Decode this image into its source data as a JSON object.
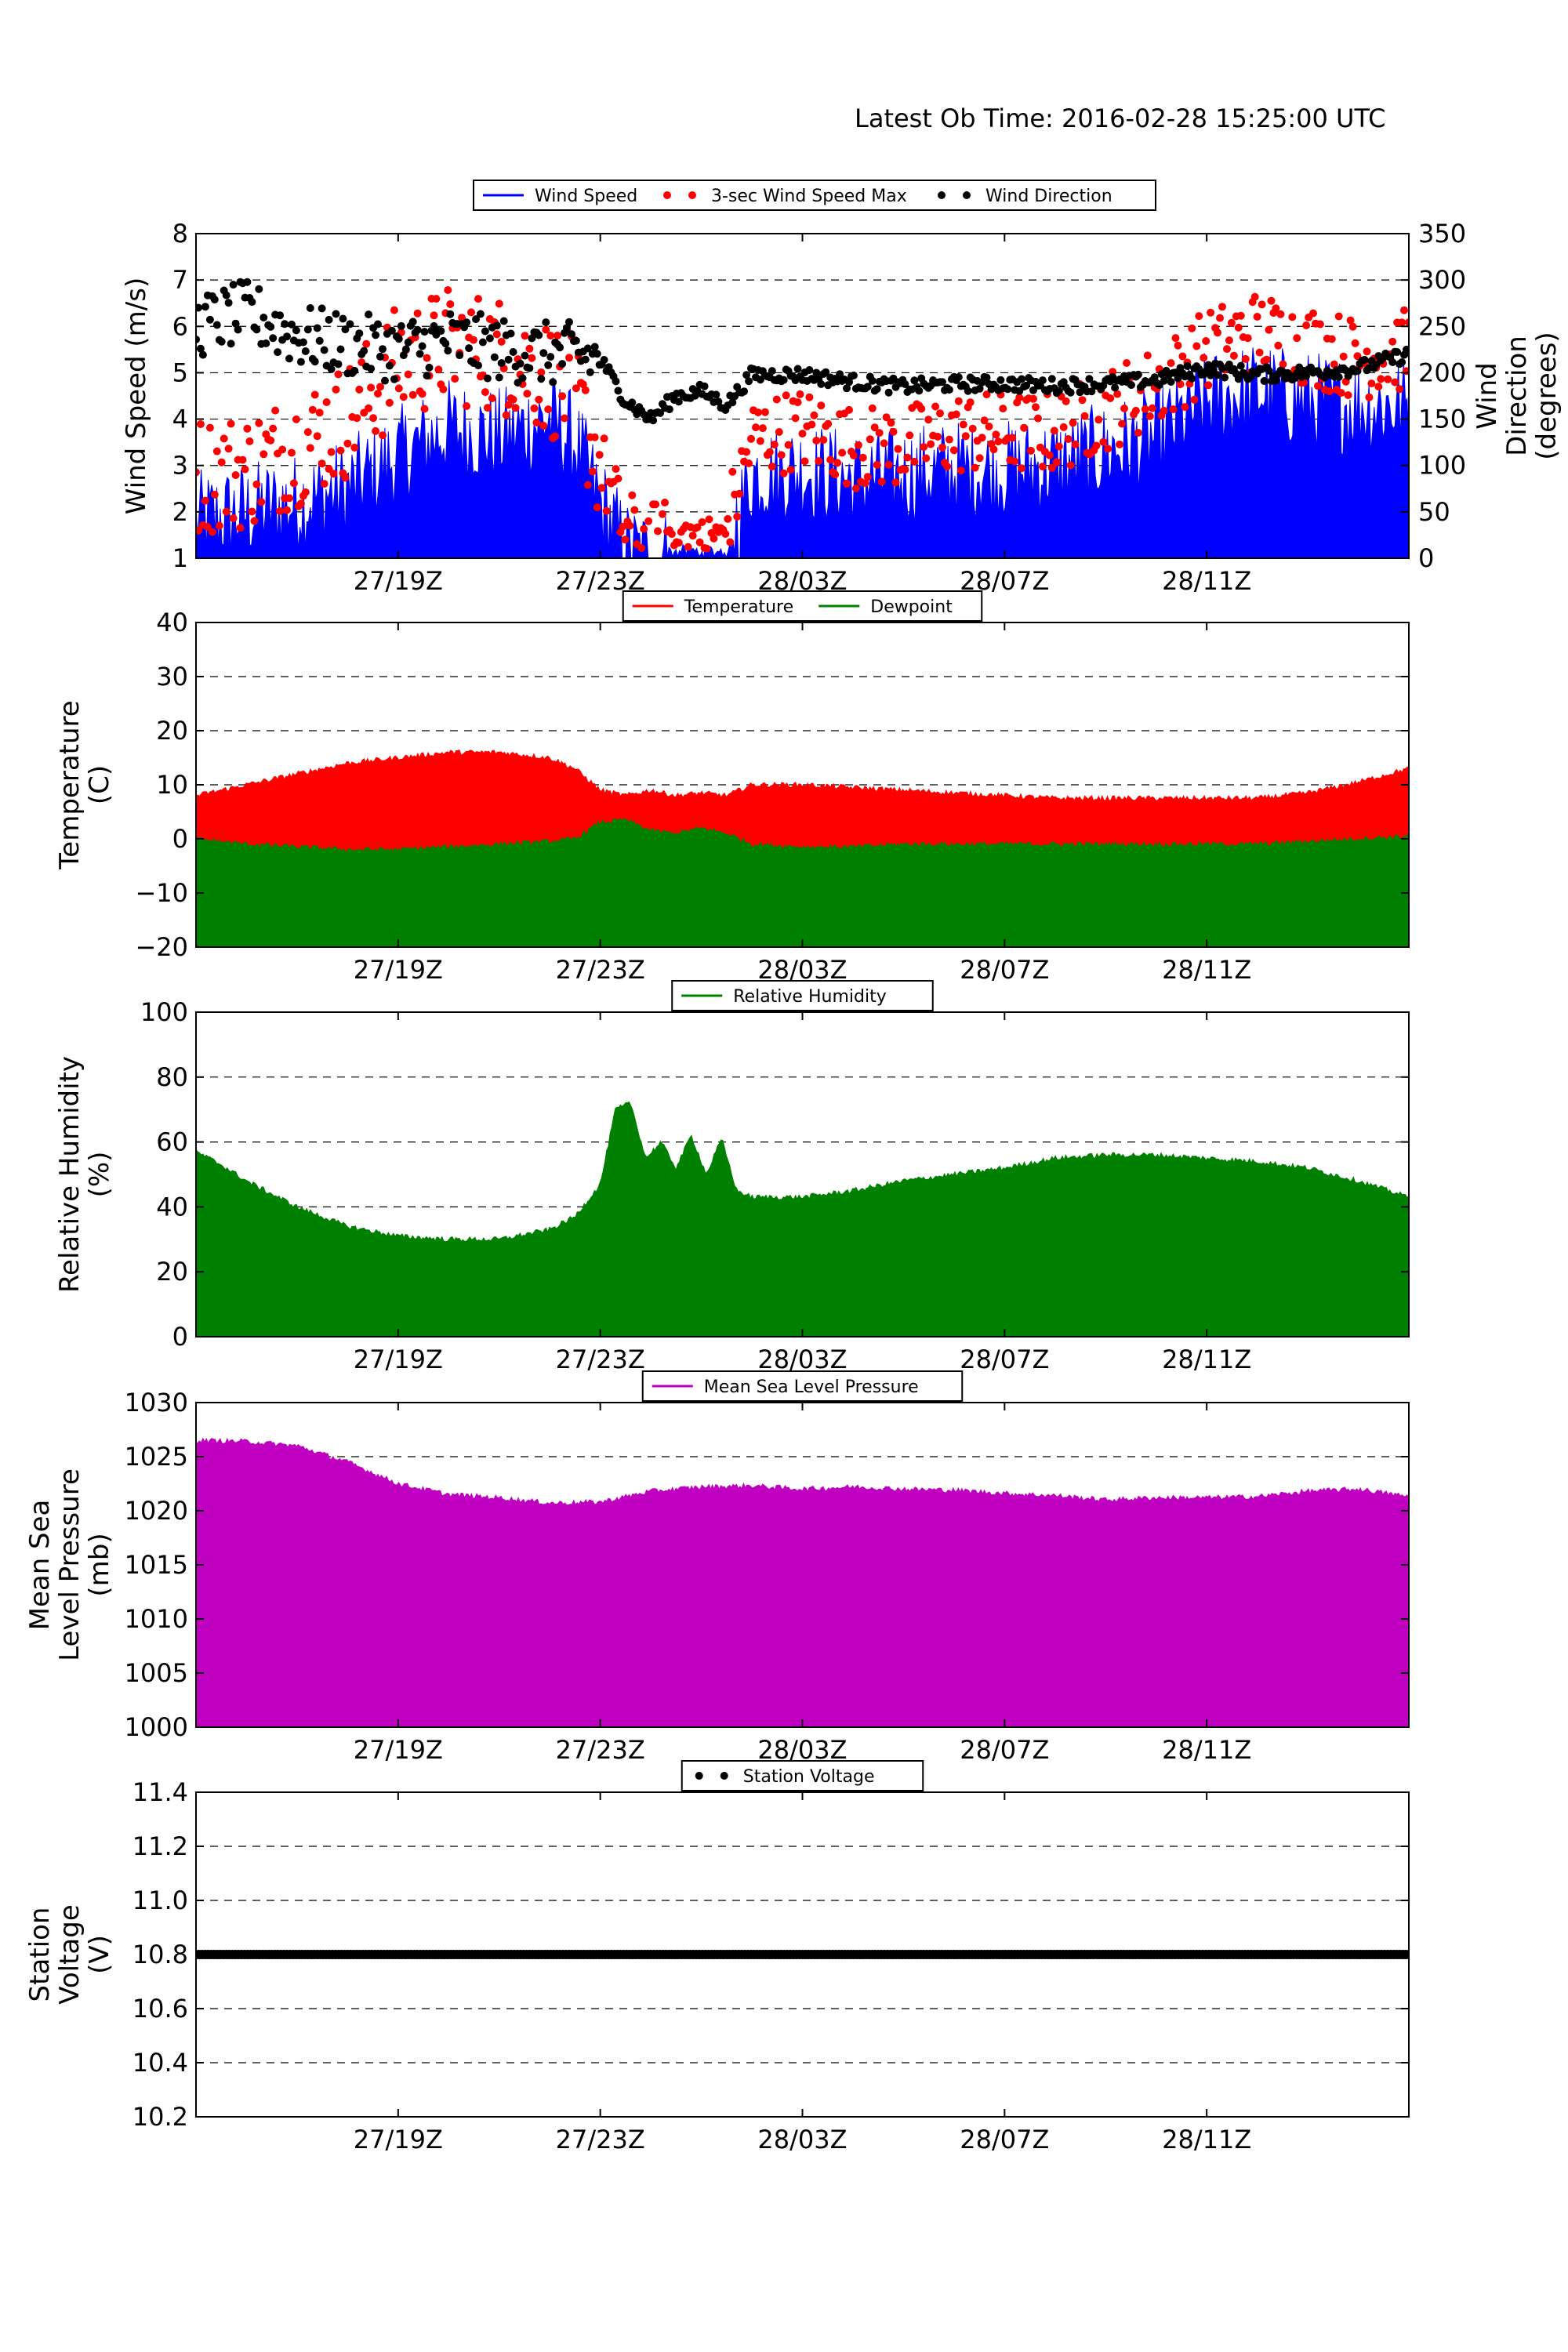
{
  "header": {
    "latest_ob": "Latest Ob Time: 2016-02-28 15:25:00 UTC"
  },
  "chart_data": [
    {
      "type": "line",
      "title": "",
      "xlabel": "",
      "ylabel": "Wind Speed (m/s)",
      "y2label": [
        "Wind",
        "Direction",
        "(degrees)"
      ],
      "x_ticks": [
        "27/19Z",
        "27/23Z",
        "28/03Z",
        "28/07Z",
        "28/11Z"
      ],
      "ylim": [
        1,
        8
      ],
      "y_ticks": [
        1,
        2,
        3,
        4,
        5,
        6,
        7,
        8
      ],
      "y2lim": [
        0,
        350
      ],
      "y2_ticks": [
        0,
        50,
        100,
        150,
        200,
        250,
        300,
        350
      ],
      "grid": true,
      "legend_position": "top-center",
      "series": [
        {
          "name": "Wind Speed",
          "style": "filled-line",
          "color": "#0000ff",
          "x_hours": [
            0,
            1,
            2,
            3,
            4,
            5,
            6,
            7,
            7.5,
            8,
            8.5,
            9,
            9.5,
            10,
            10.5,
            11,
            12,
            13,
            14,
            15,
            16,
            17,
            18,
            19,
            20,
            21,
            22,
            23,
            24
          ],
          "values": [
            1.8,
            2.0,
            2.2,
            2.5,
            3.2,
            3.8,
            3.6,
            4.0,
            3.5,
            2.2,
            1.2,
            1.0,
            1.0,
            1.0,
            1.2,
            2.8,
            2.9,
            2.7,
            2.8,
            2.9,
            2.9,
            3.0,
            3.3,
            3.6,
            4.4,
            4.6,
            4.4,
            4.3,
            4.3
          ]
        },
        {
          "name": "3-sec Wind Speed Max",
          "style": "points",
          "color": "#ff0000",
          "x_hours": [
            0,
            1,
            2,
            3,
            4,
            5,
            6,
            7,
            7.5,
            8,
            8.5,
            9,
            9.5,
            10,
            10.5,
            11,
            12,
            13,
            14,
            15,
            16,
            17,
            18,
            19,
            20,
            21,
            22,
            23,
            24
          ],
          "values": [
            2.8,
            2.9,
            3.4,
            4.0,
            5.2,
            5.6,
            5.4,
            4.9,
            4.5,
            3.0,
            1.6,
            1.3,
            1.5,
            1.7,
            1.6,
            3.6,
            3.8,
            3.4,
            3.4,
            3.7,
            3.7,
            3.7,
            4.2,
            4.7,
            5.5,
            5.9,
            5.6,
            5.3,
            5.5
          ]
        },
        {
          "name": "Wind Direction",
          "style": "points",
          "color": "#000000",
          "axis": "right",
          "x_hours": [
            0,
            1,
            2,
            3,
            4,
            5,
            6,
            7,
            7.5,
            8,
            8.5,
            9,
            9.5,
            10,
            10.5,
            11,
            12,
            13,
            14,
            15,
            16,
            17,
            18,
            19,
            20,
            21,
            22,
            23,
            24
          ],
          "values": [
            250,
            265,
            240,
            230,
            225,
            235,
            225,
            220,
            220,
            215,
            170,
            150,
            175,
            180,
            165,
            198,
            198,
            190,
            185,
            188,
            188,
            186,
            188,
            192,
            205,
            198,
            200,
            205,
            220
          ]
        }
      ]
    },
    {
      "type": "area",
      "title": "",
      "xlabel": "",
      "ylabel": [
        "Temperature",
        "(C)"
      ],
      "x_ticks": [
        "27/19Z",
        "27/23Z",
        "28/03Z",
        "28/07Z",
        "28/11Z"
      ],
      "ylim": [
        -20,
        40
      ],
      "y_ticks": [
        -20,
        -10,
        0,
        10,
        20,
        30,
        40
      ],
      "grid": true,
      "legend_position": "top-center",
      "series": [
        {
          "name": "Temperature",
          "color": "#ff0000",
          "x_hours": [
            0,
            1,
            2,
            3,
            4,
            5,
            6,
            7,
            7.5,
            8,
            8.5,
            9,
            9.5,
            10,
            10.5,
            11,
            12,
            13,
            14,
            15,
            16,
            17,
            18,
            19,
            20,
            21,
            22,
            23,
            24
          ],
          "values": [
            8,
            10,
            12,
            14,
            15,
            16,
            16,
            15,
            13,
            9,
            8,
            9,
            8,
            8.5,
            8,
            10,
            10,
            9.5,
            9,
            8.5,
            8,
            7.5,
            7.5,
            7.5,
            7.5,
            7.5,
            8.5,
            10.5,
            13
          ]
        },
        {
          "name": "Dewpoint",
          "color": "#008000",
          "x_hours": [
            0,
            1,
            2,
            3,
            4,
            5,
            6,
            7,
            7.5,
            8,
            8.5,
            9,
            9.5,
            10,
            10.5,
            11,
            12,
            13,
            14,
            15,
            16,
            17,
            18,
            19,
            20,
            21,
            22,
            23,
            24
          ],
          "values": [
            0,
            -1,
            -1.5,
            -2,
            -2,
            -1.5,
            -1,
            -0.5,
            0,
            3,
            3.5,
            1.5,
            1,
            2,
            1,
            -1,
            -1.5,
            -1.5,
            -1,
            -1,
            -1,
            -1,
            -1,
            -1,
            -1,
            -1,
            -0.5,
            0,
            0.5
          ]
        }
      ]
    },
    {
      "type": "area",
      "title": "",
      "xlabel": "",
      "ylabel": [
        "Relative Humidity",
        "(%)"
      ],
      "x_ticks": [
        "27/19Z",
        "27/23Z",
        "28/03Z",
        "28/07Z",
        "28/11Z"
      ],
      "ylim": [
        0,
        100
      ],
      "y_ticks": [
        0,
        20,
        40,
        60,
        80,
        100
      ],
      "grid": true,
      "legend_position": "top-center",
      "series": [
        {
          "name": "Relative Humidity",
          "color": "#008000",
          "x_hours": [
            0,
            0.5,
            1,
            2,
            3,
            4,
            5,
            6,
            7,
            7.5,
            8,
            8.3,
            8.6,
            8.9,
            9.2,
            9.5,
            9.8,
            10.1,
            10.4,
            10.7,
            11,
            12,
            13,
            14,
            15,
            16,
            17,
            18,
            19,
            20,
            21,
            22,
            23,
            24
          ],
          "values": [
            57,
            53,
            48,
            40,
            34,
            31,
            30,
            30,
            33,
            37,
            47,
            70,
            72,
            55,
            60,
            52,
            62,
            50,
            61,
            45,
            43,
            43,
            45,
            48,
            50,
            52,
            55,
            56,
            56,
            55,
            54,
            52,
            48,
            43
          ]
        }
      ]
    },
    {
      "type": "area",
      "title": "",
      "xlabel": "",
      "ylabel": [
        "Mean Sea",
        "Level Pressure",
        "(mb)"
      ],
      "x_ticks": [
        "27/19Z",
        "27/23Z",
        "28/03Z",
        "28/07Z",
        "28/11Z"
      ],
      "ylim": [
        1000,
        1030
      ],
      "y_ticks": [
        1000,
        1005,
        1010,
        1015,
        1020,
        1025,
        1030
      ],
      "grid": true,
      "legend_position": "top-center",
      "series": [
        {
          "name": "Mean Sea Level Pressure",
          "color": "#c000c0",
          "x_hours": [
            0,
            1,
            2,
            3,
            4,
            5,
            6,
            7,
            8,
            9,
            10,
            11,
            12,
            13,
            14,
            15,
            16,
            17,
            18,
            19,
            20,
            21,
            22,
            23,
            24
          ],
          "values": [
            1026.5,
            1026.4,
            1026.0,
            1024.5,
            1022.5,
            1021.5,
            1021.2,
            1020.7,
            1020.8,
            1021.8,
            1022.2,
            1022.3,
            1022.0,
            1022.2,
            1022.0,
            1021.9,
            1021.6,
            1021.4,
            1021.0,
            1021.2,
            1021.2,
            1021.3,
            1021.8,
            1022.0,
            1021.3
          ]
        }
      ]
    },
    {
      "type": "scatter",
      "title": "",
      "xlabel": "",
      "ylabel": [
        "Station",
        "Voltage",
        "(V)"
      ],
      "x_ticks": [
        "27/19Z",
        "27/23Z",
        "28/03Z",
        "28/07Z",
        "28/11Z"
      ],
      "ylim": [
        10.2,
        11.4
      ],
      "y_ticks": [
        "10.2",
        "10.4",
        "10.6",
        "10.8",
        "11.0",
        "11.2",
        "11.4"
      ],
      "grid": true,
      "legend_position": "top-center",
      "series": [
        {
          "name": "Station Voltage",
          "color": "#000000",
          "x_hours": [
            0,
            24
          ],
          "values": [
            10.8,
            10.8
          ]
        }
      ]
    }
  ]
}
